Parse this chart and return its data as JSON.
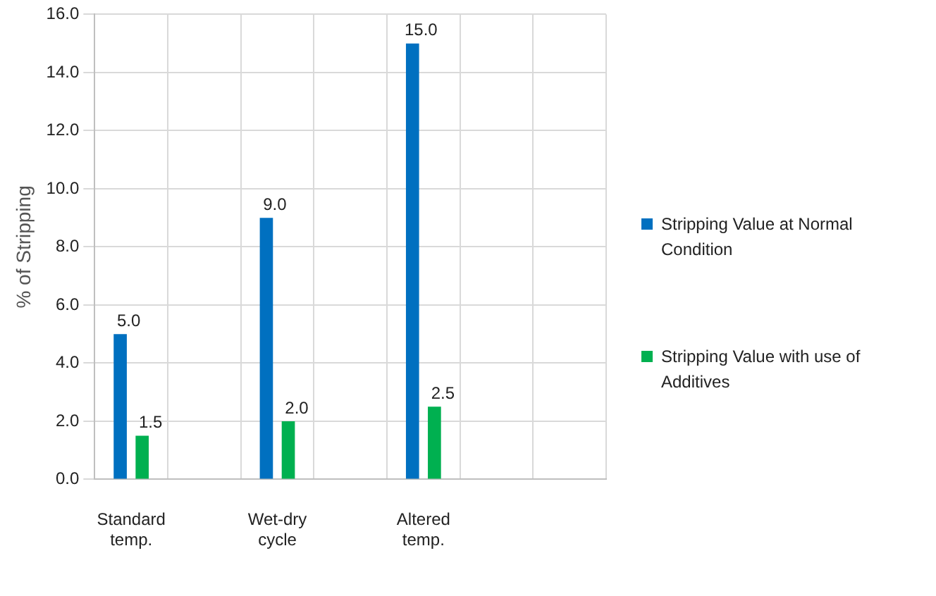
{
  "chart_data": {
    "type": "bar",
    "ylabel": "% of Stripping",
    "categories": [
      "Standard temp.",
      null,
      "Wet-dry cycle",
      null,
      "Altered temp.",
      null,
      null
    ],
    "series": [
      {
        "name": "Stripping Value at Normal Condition",
        "color": "#0070c0",
        "values": [
          5.0,
          null,
          9.0,
          null,
          15.0,
          null,
          null
        ],
        "value_labels": [
          "5.0",
          null,
          "9.0",
          null,
          "15.0",
          null,
          null
        ]
      },
      {
        "name": "Stripping Value with use of Additives",
        "color": "#00b050",
        "values": [
          1.5,
          null,
          2.0,
          null,
          2.5,
          null,
          null
        ],
        "value_labels": [
          "1.5",
          null,
          "2.0",
          null,
          "2.5",
          null,
          null
        ]
      }
    ],
    "ylim": [
      0,
      16
    ],
    "yticks": [
      {
        "value": 0,
        "label": "0.0"
      },
      {
        "value": 2,
        "label": "2.0"
      },
      {
        "value": 4,
        "label": "4.0"
      },
      {
        "value": 6,
        "label": "6.0"
      },
      {
        "value": 8,
        "label": "8.0"
      },
      {
        "value": 10,
        "label": "10.0"
      },
      {
        "value": 12,
        "label": "12.0"
      },
      {
        "value": 14,
        "label": "14.0"
      },
      {
        "value": 16,
        "label": "16.0"
      }
    ],
    "grid": true,
    "legend": "right"
  }
}
